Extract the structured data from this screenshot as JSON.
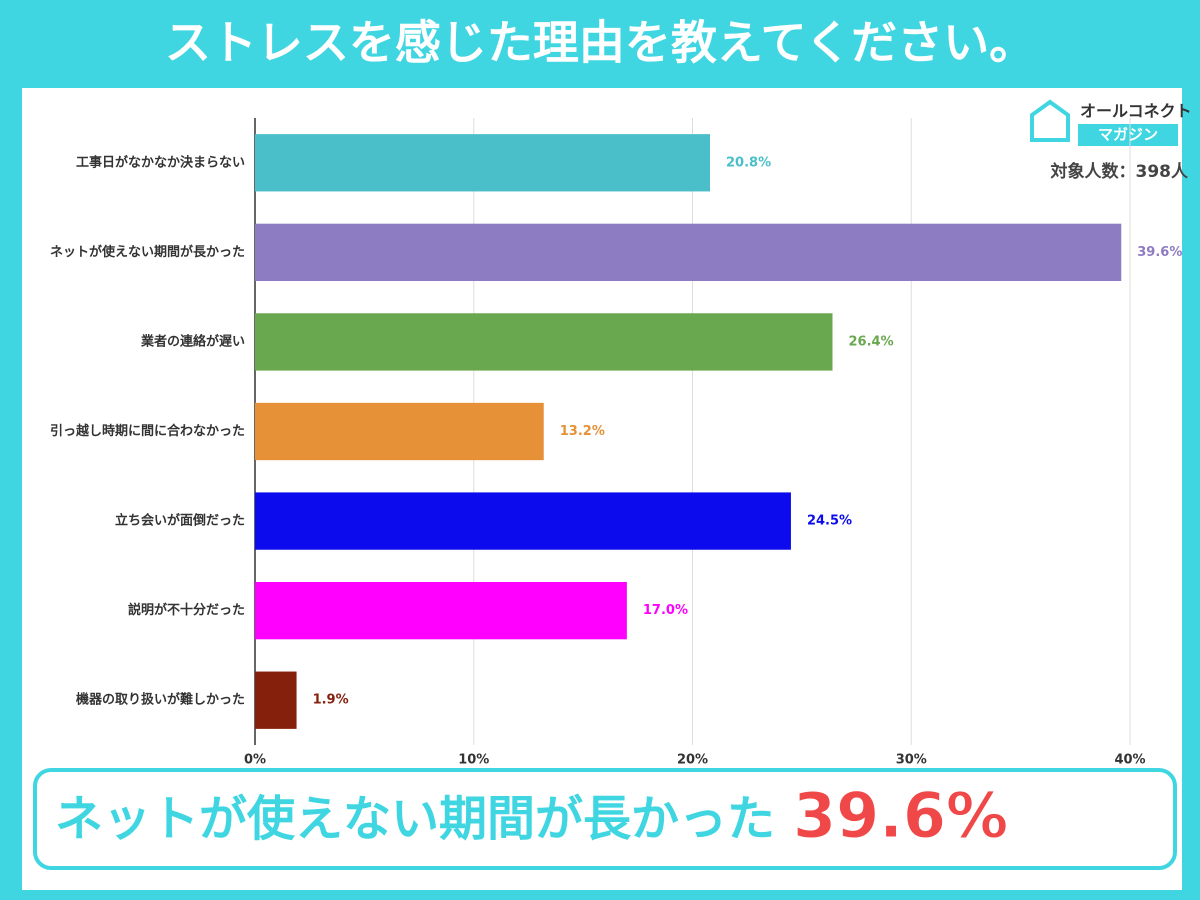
{
  "header": {
    "title": "ストレスを感じた理由を教えてください。"
  },
  "logo": {
    "line1": "オールコネクト",
    "line2": "マガジン"
  },
  "sample": "対象人数：398人",
  "chart_data": {
    "type": "bar",
    "orientation": "horizontal",
    "categories": [
      "工事日がなかなか決まらない",
      "ネットが使えない期間が長かった",
      "業者の連絡が遅い",
      "引っ越し時期に間に合わなかった",
      "立ち会いが面倒だった",
      "説明が不十分だった",
      "機器の取り扱いが難しかった"
    ],
    "values": [
      20.8,
      39.6,
      26.4,
      13.2,
      24.5,
      17.0,
      1.9
    ],
    "value_labels": [
      "20.8%",
      "39.6%",
      "26.4%",
      "13.2%",
      "24.5%",
      "17.0%",
      "1.9%"
    ],
    "colors": [
      "#4bbfc9",
      "#8e7cc3",
      "#6aa84f",
      "#e69138",
      "#0b0bee",
      "#ff00ff",
      "#85200c"
    ],
    "xlim": [
      0,
      40
    ],
    "xticks": [
      {
        "value": 0,
        "label": "0%"
      },
      {
        "value": 10,
        "label": "10%"
      },
      {
        "value": 20,
        "label": "20%"
      },
      {
        "value": 30,
        "label": "30%"
      },
      {
        "value": 40,
        "label": "40%"
      }
    ],
    "grid": true
  },
  "banner": {
    "text": "ネットが使えない期間が長かった",
    "highlight": "39.6%"
  }
}
